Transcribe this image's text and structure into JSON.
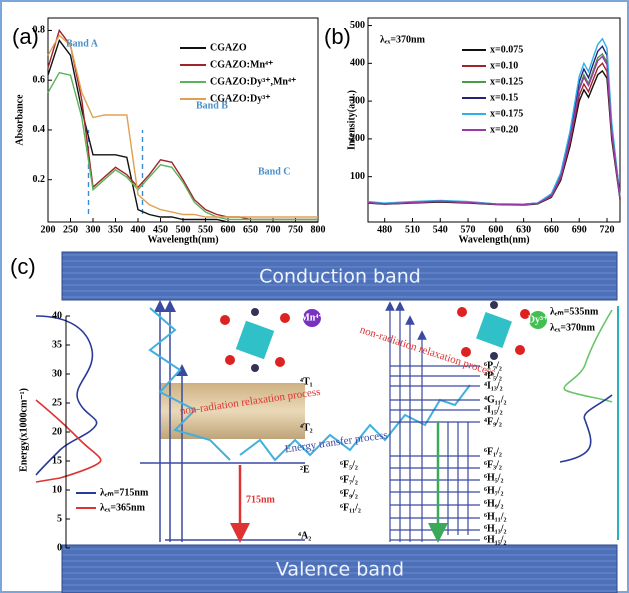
{
  "chart_data": [
    {
      "type": "line",
      "panel_label": "(a)",
      "xlabel": "Wavelength(nm)",
      "ylabel": "Absorbance",
      "x": [
        200,
        225,
        250,
        275,
        300,
        325,
        350,
        375,
        400,
        425,
        450,
        475,
        500,
        525,
        550,
        575,
        600,
        625,
        650,
        675,
        700,
        725,
        750,
        775,
        800
      ],
      "xlim": [
        200,
        800
      ],
      "xticks": [
        200,
        250,
        300,
        350,
        400,
        450,
        500,
        550,
        600,
        650,
        700,
        750,
        800
      ],
      "ylim": [
        0.03,
        0.85
      ],
      "yticks": [
        0.2,
        0.4,
        0.6,
        0.8
      ],
      "vlines": [
        290,
        410
      ],
      "annotations": [
        "Band A",
        "Band B",
        "Band C"
      ],
      "series": [
        {
          "name": "CGAZO",
          "color": "#111111",
          "values": [
            0.62,
            0.76,
            0.7,
            0.48,
            0.3,
            0.3,
            0.3,
            0.29,
            0.08,
            0.06,
            0.05,
            0.05,
            0.04,
            0.04,
            0.04,
            0.04,
            0.03,
            0.03,
            0.03,
            0.03,
            0.03,
            0.03,
            0.03,
            0.03,
            0.03
          ]
        },
        {
          "name": "CGAZO:Mn⁴⁺",
          "color": "#a0252a",
          "values": [
            0.65,
            0.8,
            0.74,
            0.52,
            0.17,
            0.21,
            0.25,
            0.22,
            0.17,
            0.22,
            0.28,
            0.27,
            0.2,
            0.12,
            0.08,
            0.06,
            0.05,
            0.05,
            0.04,
            0.04,
            0.04,
            0.04,
            0.04,
            0.04,
            0.04
          ]
        },
        {
          "name": "CGAZO:Dy³⁺,Mn⁴⁺",
          "color": "#5ab35a",
          "values": [
            0.55,
            0.63,
            0.62,
            0.45,
            0.16,
            0.2,
            0.24,
            0.21,
            0.16,
            0.21,
            0.26,
            0.25,
            0.19,
            0.11,
            0.07,
            0.05,
            0.04,
            0.04,
            0.04,
            0.04,
            0.04,
            0.04,
            0.04,
            0.04,
            0.04
          ]
        },
        {
          "name": "CGAZO:Dy³⁺",
          "color": "#e0a050",
          "values": [
            0.7,
            0.78,
            0.74,
            0.55,
            0.45,
            0.46,
            0.46,
            0.46,
            0.14,
            0.1,
            0.08,
            0.07,
            0.06,
            0.06,
            0.05,
            0.05,
            0.05,
            0.05,
            0.05,
            0.05,
            0.05,
            0.05,
            0.05,
            0.05,
            0.05
          ]
        }
      ]
    },
    {
      "type": "line",
      "panel_label": "(b)",
      "xlabel": "Wavelength(nm)",
      "ylabel": "Intensity(a.u.)",
      "annotations": [
        "λₑₓ=370nm"
      ],
      "x": [
        462,
        480,
        510,
        540,
        570,
        600,
        630,
        645,
        660,
        670,
        680,
        690,
        695,
        700,
        705,
        710,
        715,
        720,
        725,
        734
      ],
      "xlim": [
        462,
        734
      ],
      "xticks": [
        480,
        510,
        540,
        570,
        600,
        630,
        660,
        690,
        720
      ],
      "ylim": [
        -20,
        520
      ],
      "yticks": [
        100,
        200,
        300,
        400,
        500
      ],
      "series": [
        {
          "name": "x=0.075",
          "color": "#111111",
          "values": [
            30,
            27,
            30,
            33,
            30,
            26,
            25,
            28,
            45,
            90,
            180,
            300,
            330,
            310,
            340,
            370,
            380,
            360,
            200,
            40
          ]
        },
        {
          "name": "x=0.10",
          "color": "#a0252a",
          "values": [
            31,
            28,
            31,
            34,
            31,
            27,
            26,
            29,
            47,
            95,
            190,
            315,
            345,
            325,
            357,
            388,
            400,
            378,
            210,
            42
          ]
        },
        {
          "name": "x=0.125",
          "color": "#4a9a4a",
          "values": [
            32,
            28,
            32,
            35,
            32,
            27,
            26,
            29,
            50,
            100,
            200,
            335,
            370,
            347,
            380,
            415,
            425,
            403,
            224,
            44
          ]
        },
        {
          "name": "x=0.15",
          "color": "#22227a",
          "values": [
            33,
            29,
            33,
            36,
            33,
            28,
            27,
            30,
            52,
            105,
            210,
            350,
            385,
            362,
            398,
            432,
            445,
            421,
            234,
            46
          ]
        },
        {
          "name": "x=0.175",
          "color": "#30b0e8",
          "values": [
            34,
            30,
            34,
            37,
            34,
            28,
            27,
            30,
            55,
            110,
            220,
            365,
            400,
            378,
            415,
            450,
            465,
            440,
            244,
            48
          ]
        },
        {
          "name": "x=0.20",
          "color": "#9a3aa8",
          "values": [
            32,
            28,
            32,
            35,
            32,
            27,
            26,
            29,
            49,
            99,
            198,
            330,
            363,
            341,
            374,
            407,
            418,
            396,
            220,
            44
          ]
        }
      ]
    }
  ],
  "diagram": {
    "panel_label": "(c)",
    "conduction_band": "Conduction   band",
    "valence_band": "Valence   band",
    "energy_axis": {
      "title": "Energy(x1000cm⁻¹)",
      "ylim": [
        0,
        40
      ],
      "yticks": [
        0,
        5,
        10,
        15,
        20,
        25,
        30,
        35,
        40
      ]
    },
    "legend": [
      "λₑₘ=715nm",
      "λₑₓ=365nm"
    ],
    "mn_ion": "Mn⁴⁺",
    "mn_levels": [
      "⁴T₁",
      "⁴T₂",
      "²E",
      "⁴A₂"
    ],
    "emission": "715nm",
    "energy_transfer": "Energy transfer process",
    "relaxation": [
      "non-radiation relaxation process",
      "non-radiation relaxation process"
    ],
    "dy_ion": "Dy³⁺",
    "dy_legend": [
      "λₑₘ=535nm",
      "λₑₓ=370nm"
    ],
    "dy_upper_levels": [
      "⁶P₇/₂",
      "⁴P₅/₂",
      "⁴I₁₃/₂",
      "⁴G₁₁/₂",
      "⁴I₁₅/₂",
      "⁴F₉/₂"
    ],
    "dy_lower_levels": [
      "⁶F₁/₂",
      "⁶F₃/₂",
      "⁶H₅/₂",
      "⁶H₇/₂",
      "⁶H₉/₂",
      "⁶H₁₁/₂",
      "⁶H₁₃/₂",
      "⁶H₁₅/₂"
    ],
    "dy_left_levels": [
      "⁶F₅/₂",
      "⁶F₇/₂",
      "⁶F₉/₂",
      "⁶F₁₁/₂"
    ]
  }
}
